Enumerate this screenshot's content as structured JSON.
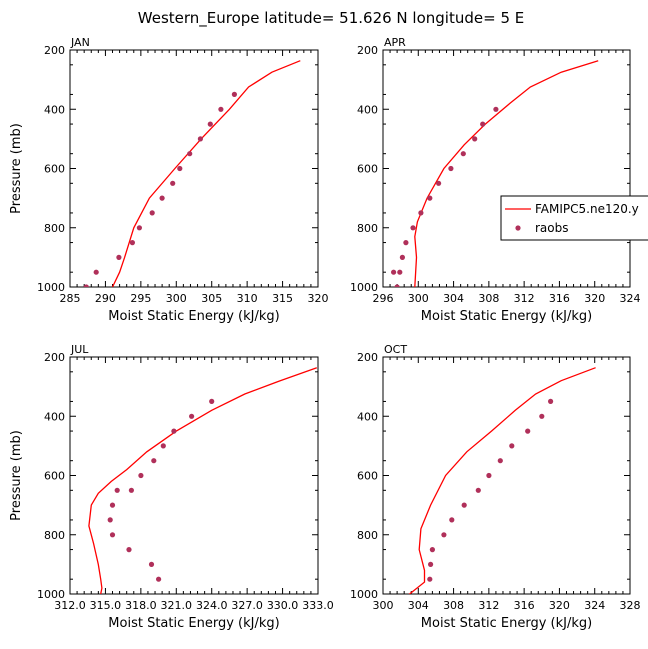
{
  "figure": {
    "title": "Western_Europe  latitude= 51.626 N longitude= 5 E"
  },
  "legend": {
    "model_label": "FAMIPC5.ne120.y",
    "obs_label": "raobs",
    "model_color": "#ff0000",
    "obs_color": "#b0305a"
  },
  "chart_data": [
    {
      "type": "line",
      "panel_title": "JAN",
      "xlabel": "Moist Static Energy (kJ/kg)",
      "ylabel": "Pressure (mb)",
      "xlim": [
        285,
        320
      ],
      "ylim": [
        1000,
        200
      ],
      "x_ticks": [
        "285",
        "290",
        "295",
        "300",
        "305",
        "310",
        "315",
        "320"
      ],
      "x_tick_values": [
        285,
        290,
        295,
        300,
        305,
        310,
        315,
        320
      ],
      "y_ticks": [
        "200",
        "400",
        "600",
        "800",
        "1000"
      ],
      "y_tick_values": [
        200,
        400,
        600,
        800,
        1000
      ],
      "series": [
        {
          "name": "FAMIPC5.ne120.y",
          "kind": "line",
          "x": [
            317.5,
            313.5,
            310.2,
            307.5,
            303.5,
            299.8,
            296.2,
            294.0,
            292.7,
            292.0,
            291.0
          ],
          "y": [
            236,
            275,
            325,
            400,
            500,
            600,
            700,
            800,
            900,
            950,
            1000
          ]
        },
        {
          "name": "raobs",
          "kind": "points",
          "x": [
            308.2,
            306.3,
            304.8,
            303.4,
            301.9,
            300.5,
            299.5,
            298.0,
            296.6,
            294.8,
            293.8,
            291.9,
            288.7,
            287.3
          ],
          "y": [
            350,
            400,
            450,
            500,
            550,
            600,
            650,
            700,
            750,
            800,
            850,
            900,
            950,
            1000
          ]
        }
      ]
    },
    {
      "type": "line",
      "panel_title": "APR",
      "xlabel": "Moist Static Energy (kJ/kg)",
      "ylabel": "Pressure (mb)",
      "xlim": [
        296,
        324
      ],
      "ylim": [
        1000,
        200
      ],
      "x_ticks": [
        "296",
        "300",
        "304",
        "308",
        "312",
        "316",
        "320",
        "324"
      ],
      "x_tick_values": [
        296,
        300,
        304,
        308,
        312,
        316,
        320,
        324
      ],
      "y_ticks": [
        "200",
        "400",
        "600",
        "800",
        "1000"
      ],
      "y_tick_values": [
        200,
        400,
        600,
        800,
        1000
      ],
      "series": [
        {
          "name": "FAMIPC5.ne120.y",
          "kind": "line",
          "x": [
            320.4,
            316.2,
            312.7,
            310.4,
            307.6,
            305.2,
            302.9,
            301.0,
            299.9,
            299.6,
            299.8,
            299.6
          ],
          "y": [
            236,
            275,
            325,
            380,
            450,
            520,
            600,
            700,
            780,
            830,
            900,
            1000
          ]
        },
        {
          "name": "raobs",
          "kind": "points",
          "x": [
            308.8,
            307.3,
            306.4,
            305.1,
            303.7,
            302.3,
            301.3,
            300.3,
            299.4,
            298.6,
            298.2,
            297.9,
            297.6,
            297.2
          ],
          "y": [
            400,
            450,
            500,
            550,
            600,
            650,
            700,
            750,
            800,
            850,
            900,
            950,
            1000,
            950
          ]
        }
      ]
    },
    {
      "type": "line",
      "panel_title": "JUL",
      "xlabel": "Moist Static Energy (kJ/kg)",
      "ylabel": "Pressure (mb)",
      "xlim": [
        312.0,
        333.0
      ],
      "ylim": [
        1000,
        200
      ],
      "x_ticks": [
        "312.0",
        "315.0",
        "318.0",
        "321.0",
        "324.0",
        "327.0",
        "330.0",
        "333.0"
      ],
      "x_tick_values": [
        312,
        315,
        318,
        321,
        324,
        327,
        330,
        333
      ],
      "y_ticks": [
        "200",
        "400",
        "600",
        "800",
        "1000"
      ],
      "y_tick_values": [
        200,
        400,
        600,
        800,
        1000
      ],
      "series": [
        {
          "name": "FAMIPC5.ne120.y",
          "kind": "line",
          "x": [
            332.9,
            329.8,
            326.8,
            324.0,
            321.0,
            318.5,
            316.8,
            315.5,
            314.4,
            313.8,
            313.6,
            314.0,
            314.4,
            314.6,
            314.7,
            314.6
          ],
          "y": [
            236,
            280,
            325,
            380,
            450,
            520,
            580,
            620,
            660,
            700,
            770,
            830,
            900,
            950,
            980,
            1000
          ]
        },
        {
          "name": "raobs",
          "kind": "points",
          "x": [
            324.0,
            322.3,
            320.8,
            319.9,
            319.1,
            318.0,
            317.2,
            316.0,
            315.6,
            315.4,
            315.6,
            317.0,
            318.9,
            319.5
          ],
          "y": [
            350,
            400,
            450,
            500,
            550,
            600,
            650,
            650,
            700,
            750,
            800,
            850,
            900,
            950
          ]
        }
      ]
    },
    {
      "type": "line",
      "panel_title": "OCT",
      "xlabel": "Moist Static Energy (kJ/kg)",
      "ylabel": "Pressure (mb)",
      "xlim": [
        300,
        328
      ],
      "ylim": [
        1000,
        200
      ],
      "x_ticks": [
        "300",
        "304",
        "308",
        "312",
        "316",
        "320",
        "324",
        "328"
      ],
      "x_tick_values": [
        300,
        304,
        308,
        312,
        316,
        320,
        324,
        328
      ],
      "y_ticks": [
        "200",
        "400",
        "600",
        "800",
        "1000"
      ],
      "y_tick_values": [
        200,
        400,
        600,
        800,
        1000
      ],
      "series": [
        {
          "name": "FAMIPC5.ne120.y",
          "kind": "line",
          "x": [
            324.1,
            320.2,
            317.3,
            315.0,
            312.3,
            309.5,
            307.1,
            305.4,
            304.3,
            304.1,
            304.7,
            304.7,
            302.8
          ],
          "y": [
            236,
            280,
            325,
            380,
            450,
            520,
            600,
            700,
            780,
            850,
            920,
            960,
            1005
          ]
        },
        {
          "name": "raobs",
          "kind": "points",
          "x": [
            319.0,
            318.0,
            316.4,
            314.6,
            313.3,
            312.0,
            310.8,
            309.2,
            307.8,
            306.9,
            305.6,
            305.4,
            305.3
          ],
          "y": [
            350,
            400,
            450,
            500,
            550,
            600,
            650,
            700,
            750,
            800,
            850,
            900,
            950
          ]
        }
      ]
    }
  ]
}
